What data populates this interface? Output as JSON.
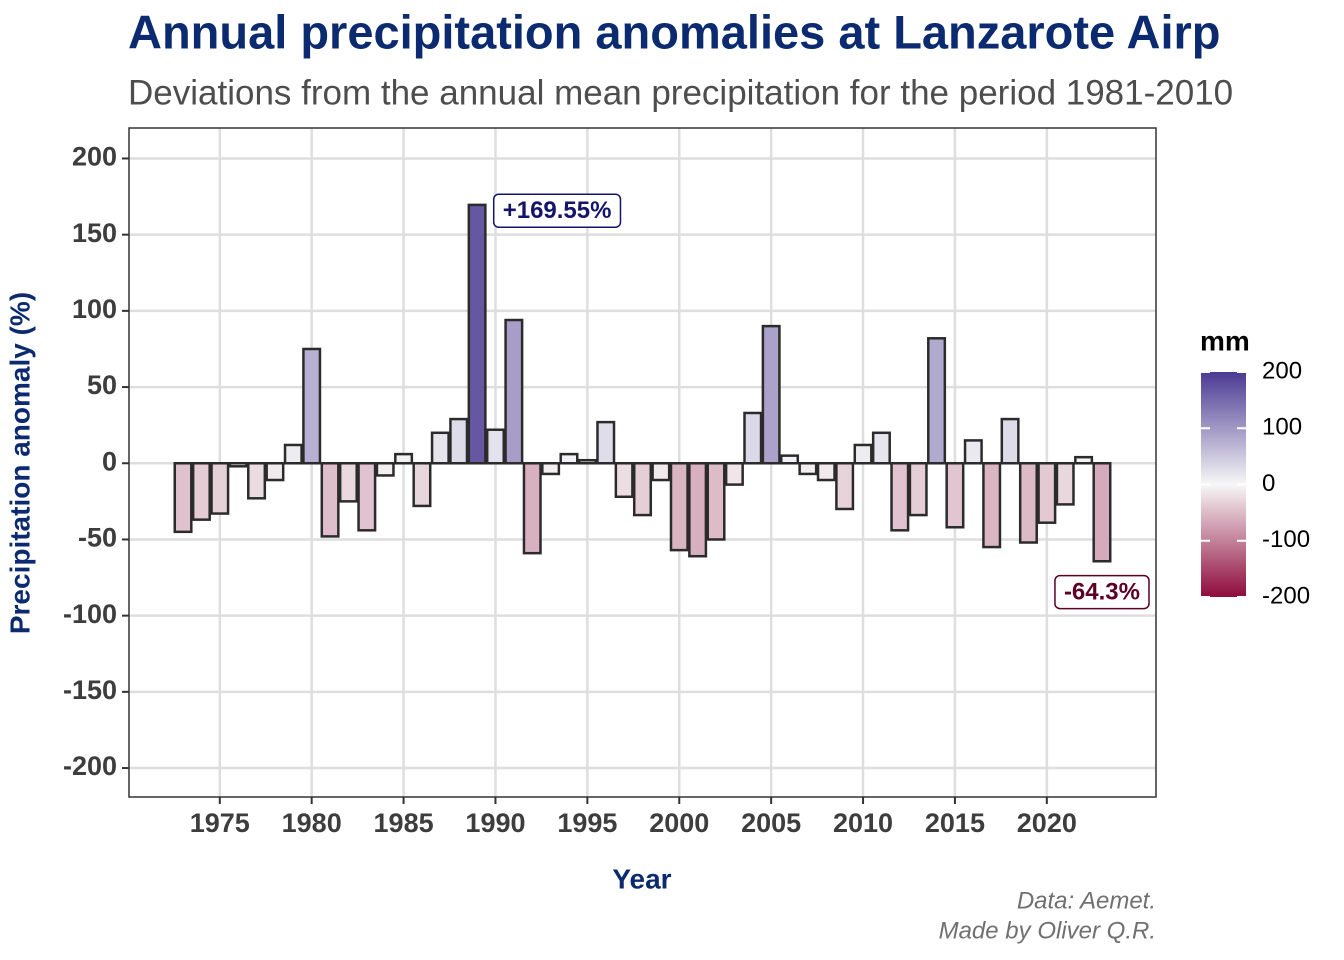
{
  "chart_data": {
    "type": "bar",
    "title": "Annual precipitation anomalies at Lanzarote Airp",
    "subtitle": "Deviations from the annual mean precipitation for the period 1981-2010",
    "x_label": "Year",
    "y_label": "Precipitation anomaly (%)",
    "caption": [
      "Data: Aemet.",
      "Made by Oliver Q.R."
    ],
    "x": [
      1973,
      1974,
      1975,
      1976,
      1977,
      1978,
      1979,
      1980,
      1981,
      1982,
      1983,
      1984,
      1985,
      1986,
      1987,
      1988,
      1989,
      1990,
      1991,
      1992,
      1993,
      1994,
      1995,
      1996,
      1997,
      1998,
      1999,
      2000,
      2001,
      2002,
      2003,
      2004,
      2005,
      2006,
      2007,
      2008,
      2009,
      2010,
      2011,
      2012,
      2013,
      2014,
      2015,
      2016,
      2017,
      2018,
      2019,
      2020,
      2021,
      2022,
      2023
    ],
    "values": [
      -45,
      -37,
      -33,
      -2,
      -23,
      -11,
      12,
      75,
      -48,
      -25,
      -44,
      -8,
      6,
      -28,
      20,
      29,
      169.55,
      22,
      94,
      -59,
      -7,
      6,
      2,
      27,
      -22,
      -34,
      -11,
      -57,
      -61,
      -50,
      -14,
      33,
      90,
      5,
      -7,
      -11,
      -30,
      12,
      20,
      -44,
      -34,
      82,
      -42,
      15,
      -55,
      29,
      -52,
      -39,
      -27,
      4,
      -64.3
    ],
    "value_labels": [
      null,
      null,
      null,
      null,
      null,
      null,
      null,
      null,
      null,
      null,
      null,
      null,
      null,
      null,
      null,
      null,
      "+169.55%",
      null,
      null,
      null,
      null,
      null,
      null,
      null,
      null,
      null,
      null,
      null,
      null,
      null,
      null,
      null,
      null,
      null,
      null,
      null,
      null,
      null,
      null,
      null,
      null,
      null,
      null,
      null,
      null,
      null,
      null,
      null,
      null,
      null,
      "-64.3%"
    ],
    "xlim": [
      1970.06,
      2025.94
    ],
    "xticks": [
      1975,
      1980,
      1985,
      1990,
      1995,
      2000,
      2005,
      2010,
      2015,
      2020
    ],
    "ylim": [
      -219,
      220
    ],
    "yticks": [
      -200,
      -150,
      -100,
      -50,
      0,
      50,
      100,
      150,
      200
    ],
    "grid": true,
    "colorscale": {
      "title": "mm",
      "low": "#8e0b3b",
      "mid": "#f7f7f7",
      "high": "#4b3a93",
      "limits": [
        -200,
        200
      ],
      "ticks": [
        200,
        100,
        0,
        -100,
        -200
      ]
    }
  }
}
